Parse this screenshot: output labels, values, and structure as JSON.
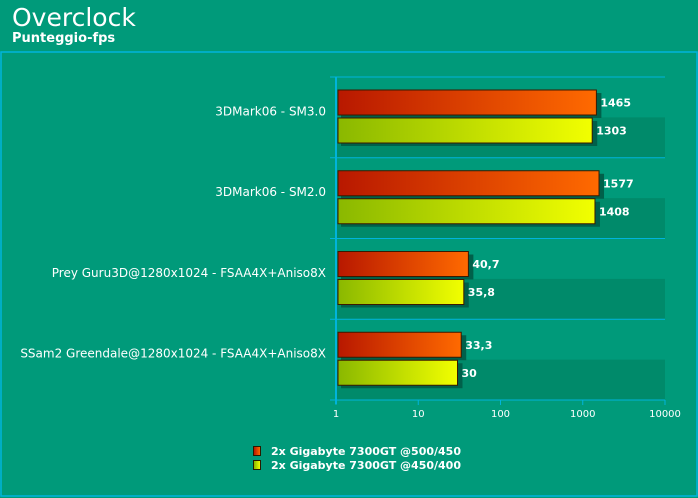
{
  "header": {
    "title": "Overclock",
    "subtitle": "Punteggio-fps"
  },
  "colors": {
    "background": "#009a7a",
    "panel": "#008a6a",
    "accent_line": "#00b4dc",
    "series_1_dark": "#b81800",
    "series_1_light": "#ff6a00",
    "series_2_dark": "#8ab800",
    "series_2_light": "#f2ff00"
  },
  "chart_data": {
    "type": "bar",
    "orientation": "horizontal",
    "categories": [
      "3DMark06 - SM3.0",
      "3DMark06 - SM2.0",
      "Prey Guru3D@1280x1024 - FSAA4X+Aniso8X",
      "SSam2 Greendale@1280x1024 - FSAA4X+Aniso8X"
    ],
    "series": [
      {
        "name": "2x Gigabyte 7300GT @500/450",
        "values": [
          1465,
          1577,
          40.7,
          33.3
        ],
        "labels": [
          "1465",
          "1577",
          "40,7",
          "33,3"
        ]
      },
      {
        "name": "2x Gigabyte 7300GT @450/400",
        "values": [
          1303,
          1408,
          35.8,
          30
        ],
        "labels": [
          "1303",
          "1408",
          "35,8",
          "30"
        ]
      }
    ],
    "xscale": "log",
    "xlim": [
      1,
      10000
    ],
    "xticks": [
      "1",
      "10",
      "100",
      "1000",
      "10000"
    ],
    "grid": true,
    "legend_position": "bottom"
  }
}
